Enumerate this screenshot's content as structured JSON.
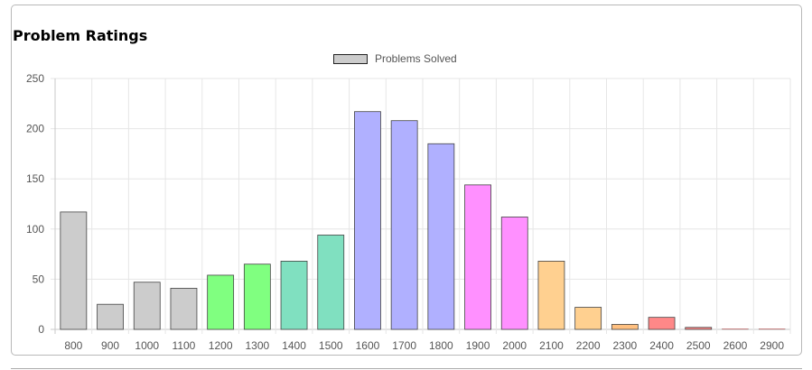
{
  "chart_data": {
    "type": "bar",
    "title": "Problem Ratings",
    "xlabel": "",
    "ylabel": "",
    "ylim": [
      0,
      250
    ],
    "yticks": [
      "250",
      "200",
      "150",
      "100",
      "50",
      "0"
    ],
    "categories": [
      "800",
      "900",
      "1000",
      "1100",
      "1200",
      "1300",
      "1400",
      "1500",
      "1600",
      "1700",
      "1800",
      "1900",
      "2000",
      "2100",
      "2200",
      "2300",
      "2400",
      "2500",
      "2600",
      "2900"
    ],
    "series": [
      {
        "name": "Problems Solved",
        "values": [
          117,
          25,
          47,
          41,
          54,
          65,
          68,
          94,
          217,
          208,
          185,
          144,
          112,
          68,
          22,
          5,
          12,
          2,
          0,
          0
        ]
      }
    ],
    "bar_colors": [
      "#cccccc",
      "#cccccc",
      "#cccccc",
      "#cccccc",
      "#80ff80",
      "#80ff80",
      "#80e0c0",
      "#80e0c0",
      "#b0b0ff",
      "#b0b0ff",
      "#b0b0ff",
      "#ff90ff",
      "#ff90ff",
      "#ffd090",
      "#ffd090",
      "#ffc080",
      "#ff8888",
      "#ff8888",
      "#ff8888",
      "#ff8888"
    ],
    "legend_color": "#cccccc",
    "legend_position": "top-center",
    "grid": true
  }
}
